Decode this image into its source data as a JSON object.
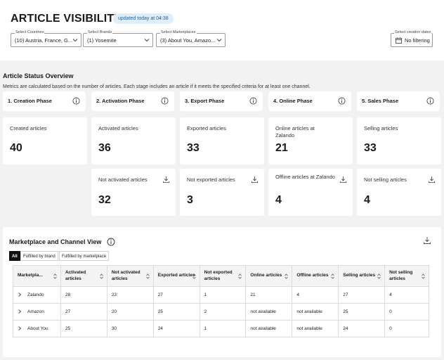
{
  "header": {
    "title": "ARTICLE VISIBILITY",
    "updated_badge": "updated today at 04:38",
    "filters": [
      {
        "label": "Select Countries",
        "value": "(10) Austria, France, G..."
      },
      {
        "label": "Select Brands",
        "value": "(1) Yosemite"
      },
      {
        "label": "Select Marketplaces",
        "value": "(3) About You, Amazo..."
      }
    ],
    "date_filter": {
      "label": "Select creation dates",
      "value": "No filtering"
    }
  },
  "overview": {
    "title": "Article Status Overview",
    "description": "Metrics are calculated based on the number of articles. Each stage includes an article if it meets the specified criteria for at least one channel.",
    "phases": [
      "1. Creation Phase",
      "2. Activation Phase",
      "3. Export Phase",
      "4. Online Phase",
      "5. Sales Phase"
    ],
    "primary": [
      {
        "label": "Created articles",
        "value": "40"
      },
      {
        "label": "Activated articles",
        "value": "36"
      },
      {
        "label": "Exported articles",
        "value": "33"
      },
      {
        "label": "Online articles at Zalando",
        "value": "21"
      },
      {
        "label": "Selling articles",
        "value": "33"
      }
    ],
    "secondary": [
      {
        "label": "Not activated articles",
        "value": "32"
      },
      {
        "label": "Not exported articles",
        "value": "3"
      },
      {
        "label": "Offline articles at Zalando",
        "value": "4"
      },
      {
        "label": "Not selling articles",
        "value": "4"
      }
    ]
  },
  "marketplace": {
    "title": "Marketplace and Channel View",
    "tabs": [
      "All",
      "Fulfilled by brand",
      "Fulfilled by marketplace"
    ],
    "columns": [
      "Marketpla...",
      "Activated articles",
      "Not activated articles",
      "Exported articles",
      "Not exported articles",
      "Online articles",
      "Offline articles",
      "Selling articles",
      "Not selling articles"
    ],
    "rows": [
      [
        "Zalando",
        "28",
        "23",
        "27",
        "1",
        "21",
        "4",
        "27",
        "4"
      ],
      [
        "Amazon",
        "27",
        "20",
        "25",
        "2",
        "not available",
        "not available",
        "25",
        "0"
      ],
      [
        "About You",
        "25",
        "30",
        "24",
        "1",
        "not available",
        "not available",
        "24",
        "0"
      ]
    ]
  }
}
